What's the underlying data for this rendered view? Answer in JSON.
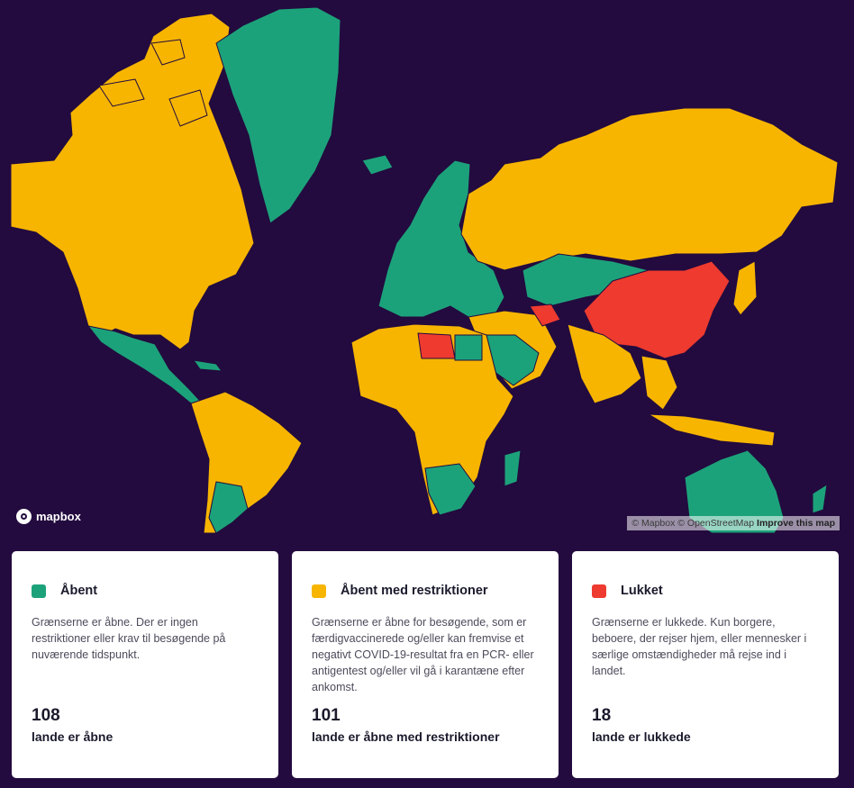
{
  "colors": {
    "background": "#230b3f",
    "open": "#1ca27a",
    "restricted": "#f7b500",
    "closed": "#ee3a2f"
  },
  "map": {
    "logo_text": "mapbox",
    "attribution": "© Mapbox © OpenStreetMap",
    "improve_link": "Improve this map"
  },
  "legend": [
    {
      "status": "open",
      "title": "Åbent",
      "description": "Grænserne er åbne. Der er ingen restriktioner eller krav til besøgende på nuværende tidspunkt.",
      "count": "108",
      "count_label": "lande er åbne"
    },
    {
      "status": "restricted",
      "title": "Åbent med restriktioner",
      "description": "Grænserne er åbne for besøgende, som er færdigvaccinerede og/eller kan fremvise et negativt COVID-19-resultat fra en PCR- eller antigentest og/eller vil gå i karantæne efter ankomst.",
      "count": "101",
      "count_label": "lande er åbne med restriktioner"
    },
    {
      "status": "closed",
      "title": "Lukket",
      "description": "Grænserne er lukkede. Kun borgere, beboere, der rejser hjem, eller mennesker i særlige omstændigheder må rejse ind i landet.",
      "count": "18",
      "count_label": "lande er lukkede"
    }
  ]
}
